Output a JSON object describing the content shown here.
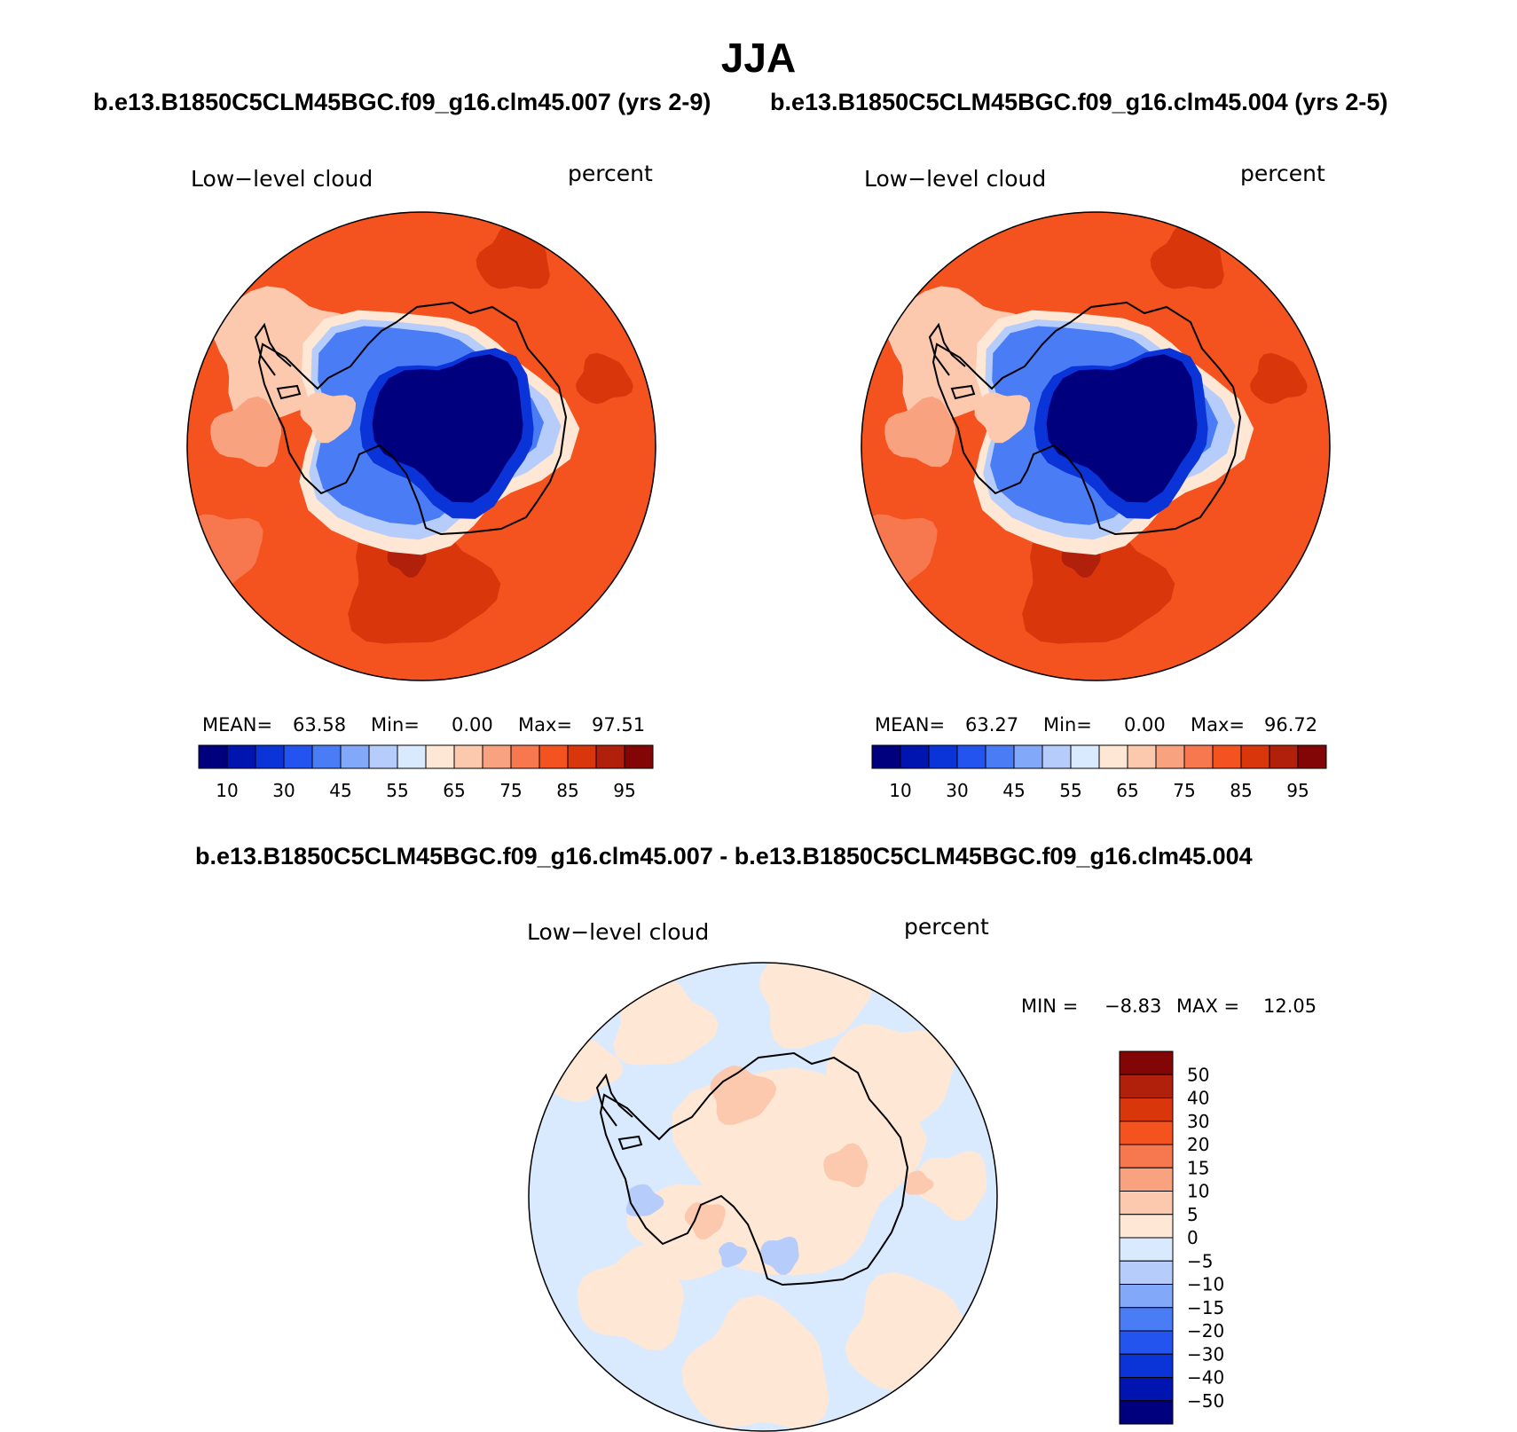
{
  "title": "JJA",
  "header_top_left": "b.e13.B1850C5CLM45BGC.f09_g16.clm45.007 (yrs 2-9)",
  "header_top_right": "b.e13.B1850C5CLM45BGC.f09_g16.clm45.004 (yrs 2-5)",
  "header_diff": "b.e13.B1850C5CLM45BGC.f09_g16.clm45.007 - b.e13.B1850C5CLM45BGC.f09_g16.clm45.004",
  "chart_data": [
    {
      "type": "heatmap",
      "projection": "south polar stereographic",
      "variable": "Low−level cloud",
      "units": "percent",
      "stats": {
        "mean_label": "MEAN=",
        "mean": "63.58",
        "min_label": "Min=",
        "min": "0.00",
        "max_label": "Max=",
        "max": "97.51"
      },
      "colorbar_levels": [
        10,
        20,
        30,
        40,
        45,
        50,
        55,
        60,
        65,
        70,
        75,
        80,
        85,
        90,
        95
      ],
      "colorbar_ticks": [
        "10",
        "30",
        "45",
        "55",
        "65",
        "75",
        "85",
        "95"
      ],
      "colors": [
        "#00007f",
        "#0015b0",
        "#0a33d8",
        "#2454ef",
        "#4a7cf5",
        "#82a8fa",
        "#b6cdfc",
        "#daeafe",
        "#fee7d4",
        "#fcc8ae",
        "#f9a27f",
        "#f7774e",
        "#f4521f",
        "#d9360c",
        "#b0200a",
        "#820605"
      ]
    },
    {
      "type": "heatmap",
      "projection": "south polar stereographic",
      "variable": "Low−level cloud",
      "units": "percent",
      "stats": {
        "mean_label": "MEAN=",
        "mean": "63.27",
        "min_label": "Min=",
        "min": "0.00",
        "max_label": "Max=",
        "max": "96.72"
      },
      "colorbar_levels": [
        10,
        20,
        30,
        40,
        45,
        50,
        55,
        60,
        65,
        70,
        75,
        80,
        85,
        90,
        95
      ],
      "colorbar_ticks": [
        "10",
        "30",
        "45",
        "55",
        "65",
        "75",
        "85",
        "95"
      ],
      "colors": [
        "#00007f",
        "#0015b0",
        "#0a33d8",
        "#2454ef",
        "#4a7cf5",
        "#82a8fa",
        "#b6cdfc",
        "#daeafe",
        "#fee7d4",
        "#fcc8ae",
        "#f9a27f",
        "#f7774e",
        "#f4521f",
        "#d9360c",
        "#b0200a",
        "#820605"
      ]
    },
    {
      "type": "heatmap",
      "projection": "south polar stereographic",
      "variable": "Low−level cloud",
      "units": "percent",
      "stats": {
        "min_label": "MIN =",
        "min": "−8.83",
        "max_label": "MAX =",
        "max": "12.05"
      },
      "colorbar_ticks": [
        "50",
        "40",
        "30",
        "20",
        "15",
        "10",
        "5",
        "0",
        "−5",
        "−10",
        "−15",
        "−20",
        "−30",
        "−40",
        "−50"
      ],
      "colors": [
        "#820605",
        "#b0200a",
        "#d9360c",
        "#f4521f",
        "#f7774e",
        "#f9a27f",
        "#fcc8ae",
        "#fee7d4",
        "#daeafe",
        "#b6cdfc",
        "#82a8fa",
        "#4a7cf5",
        "#2454ef",
        "#0a33d8",
        "#0015b0",
        "#00007f"
      ]
    }
  ]
}
